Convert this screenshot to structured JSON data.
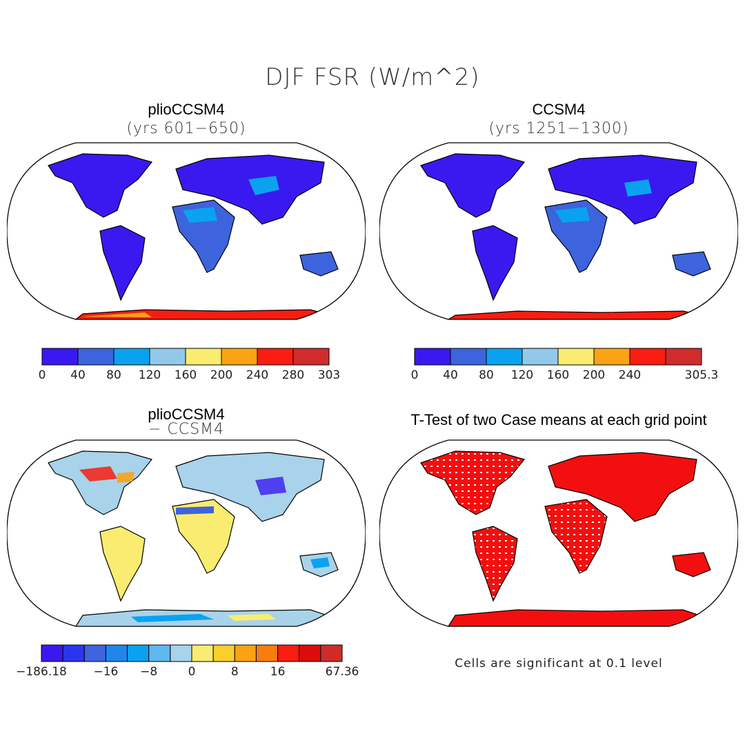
{
  "figure": {
    "title": "DJF FSR (W/m^2)"
  },
  "panels": [
    {
      "title": "plioCCSM4",
      "subtitle": "(yrs 601−650)",
      "colorbar": {
        "colors": [
          "#3a19f0",
          "#3d64dd",
          "#0aa2f0",
          "#92c9ea",
          "#f9ec70",
          "#fba215",
          "#f81d10",
          "#d02c2c"
        ],
        "ticks": [
          "0",
          "40",
          "80",
          "120",
          "160",
          "200",
          "240",
          "280",
          "303"
        ]
      }
    },
    {
      "title": "CCSM4",
      "subtitle": "(yrs 1251−1300)",
      "colorbar": {
        "colors": [
          "#3a19f0",
          "#3d64dd",
          "#0aa2f0",
          "#92c9ea",
          "#f9ec70",
          "#fba215",
          "#f81d10",
          "#d02c2c"
        ],
        "ticks": [
          "0",
          "40",
          "80",
          "120",
          "160",
          "200",
          "240",
          "",
          "305.3"
        ]
      }
    },
    {
      "title": "plioCCSM4",
      "subtitle": "− CCSM4",
      "colorbar": {
        "colors": [
          "#3a19f0",
          "#2a35ee",
          "#3d64dd",
          "#1f86ee",
          "#0aa2f0",
          "#5fb8ee",
          "#a8d3ea",
          "#f9ec70",
          "#f8cf2c",
          "#fba215",
          "#f97c0e",
          "#f81d10",
          "#dc0c0c",
          "#cf2b2b"
        ],
        "ticks": [
          "−186.18",
          "−16",
          "−8",
          "0",
          "8",
          "16",
          "67.36"
        ]
      }
    },
    {
      "title": "T-Test of two Case means at each grid point",
      "note": "Cells are significant at 0.1 level"
    }
  ]
}
